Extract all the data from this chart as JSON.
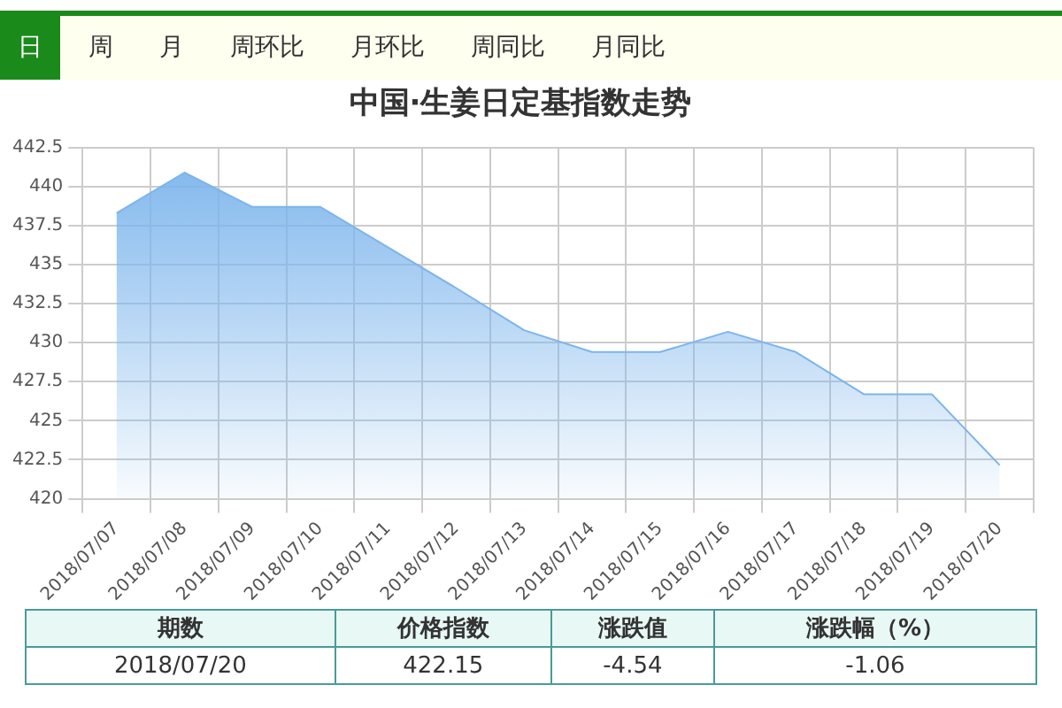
{
  "chart_data": {
    "type": "area",
    "title": "中国·生姜日定基指数走势",
    "categories": [
      "2018/07/07",
      "2018/07/08",
      "2018/07/09",
      "2018/07/10",
      "2018/07/11",
      "2018/07/12",
      "2018/07/13",
      "2018/07/14",
      "2018/07/15",
      "2018/07/16",
      "2018/07/17",
      "2018/07/18",
      "2018/07/19",
      "2018/07/20"
    ],
    "series": [
      {
        "color": "#7cb5ec",
        "values": [
          438.3,
          440.9,
          438.7,
          438.7,
          436.1,
          433.5,
          430.8,
          429.4,
          429.4,
          430.7,
          429.4,
          426.7,
          426.7,
          422.15
        ]
      }
    ],
    "ylim": [
      420,
      442.5
    ],
    "yticks": [
      420,
      422.5,
      425,
      427.5,
      430,
      432.5,
      435,
      437.5,
      440,
      442.5
    ],
    "grid": true,
    "legend": false,
    "marker": "none",
    "annotations": [
      "日",
      "周",
      "月",
      "周环比",
      "月环比",
      "周同比",
      "月同比",
      "期数",
      "价格指数",
      "涨跌值",
      "涨跌幅（%）",
      "2018/07/20",
      "422.15",
      "-4.54",
      "-1.06"
    ]
  }
}
